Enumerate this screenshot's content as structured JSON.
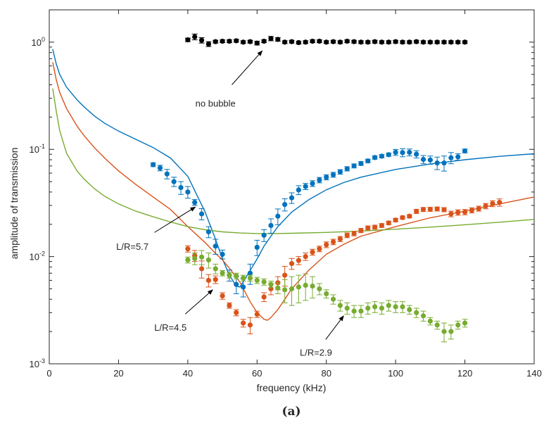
{
  "chart_data": {
    "type": "scatter",
    "xlabel": "frequency (kHz)",
    "ylabel": "amplitude of transmission",
    "xlim": [
      0,
      140
    ],
    "ylim": [
      0.001,
      2
    ],
    "yscale": "log",
    "xticks": [
      0,
      20,
      40,
      60,
      80,
      100,
      120,
      140
    ],
    "xtick_labels": [
      "0",
      "20",
      "40",
      "60",
      "80",
      "100",
      "120",
      "140"
    ],
    "yticks": [
      0.001,
      0.01,
      0.1,
      1
    ],
    "ytick_labels": [
      {
        "base": "10",
        "exp": "-3"
      },
      {
        "base": "10",
        "exp": "-2"
      },
      {
        "base": "10",
        "exp": "-1"
      },
      {
        "base": "10",
        "exp": "0"
      }
    ],
    "grid": false,
    "legend": "none",
    "caption": "(a)",
    "colors": {
      "blue": "#0072bd",
      "orange": "#d95319",
      "green": "#77ac30",
      "black": "#000000"
    },
    "series": [
      {
        "color": "#000000",
        "kind": "points",
        "x": [
          40,
          42,
          44,
          46,
          48,
          50,
          52,
          54,
          56,
          58,
          60,
          62,
          64,
          66,
          68,
          70,
          72,
          74,
          76,
          78,
          80,
          82,
          84,
          86,
          88,
          90,
          92,
          94,
          96,
          98,
          100,
          102,
          104,
          106,
          108,
          110,
          112,
          114,
          116,
          118,
          120
        ],
        "y": [
          1.05,
          1.12,
          1.04,
          0.96,
          1.01,
          1.02,
          1.02,
          1.03,
          1.0,
          1.01,
          0.98,
          1.02,
          1.08,
          1.06,
          1.0,
          1.01,
          0.99,
          1.0,
          1.02,
          1.02,
          1.0,
          1.01,
          1.0,
          1.02,
          1.01,
          1.0,
          1.0,
          1.01,
          1.0,
          1.0,
          1.01,
          1.0,
          1.0,
          1.01,
          1.0,
          1.0,
          1.0,
          1.0,
          1.0,
          1.0,
          1.0
        ],
        "err": [
          0.04,
          0.07,
          0.06,
          0.05,
          0.03,
          0.03,
          0.03,
          0.03,
          0.03,
          0.03,
          0.04,
          0.03,
          0.05,
          0.04,
          0.03,
          0.03,
          0.03,
          0.03,
          0.03,
          0.03,
          0.03,
          0.03,
          0.03,
          0.03,
          0.03,
          0.03,
          0.03,
          0.03,
          0.03,
          0.03,
          0.03,
          0.03,
          0.03,
          0.03,
          0.03,
          0.03,
          0.03,
          0.03,
          0.03,
          0.03,
          0.03
        ]
      },
      {
        "color": "#0072bd",
        "kind": "points",
        "x": [
          30,
          32,
          34,
          36,
          38,
          40,
          42,
          44,
          46,
          48,
          50,
          52,
          54,
          56,
          58,
          60,
          62,
          64,
          66,
          68,
          70,
          72,
          74,
          76,
          78,
          80,
          82,
          84,
          86,
          88,
          90,
          92,
          94,
          96,
          98,
          100,
          102,
          104,
          106,
          108,
          110,
          112,
          114,
          116,
          118,
          120
        ],
        "y": [
          0.072,
          0.067,
          0.059,
          0.05,
          0.044,
          0.04,
          0.032,
          0.025,
          0.017,
          0.0125,
          0.0105,
          0.0067,
          0.0055,
          0.0052,
          0.007,
          0.0122,
          0.0158,
          0.0195,
          0.0238,
          0.0306,
          0.0353,
          0.0418,
          0.0451,
          0.048,
          0.0517,
          0.0549,
          0.058,
          0.0617,
          0.0659,
          0.0701,
          0.0738,
          0.078,
          0.0839,
          0.0864,
          0.0892,
          0.0938,
          0.0933,
          0.0938,
          0.0901,
          0.0805,
          0.0796,
          0.0747,
          0.0747,
          0.0834,
          0.0851,
          0.0966
        ],
        "err": [
          0.003,
          0.004,
          0.006,
          0.005,
          0.006,
          0.005,
          0.002,
          0.003,
          0.002,
          0.002,
          0.001,
          0.0008,
          0.001,
          0.001,
          0.0015,
          0.002,
          0.002,
          0.003,
          0.004,
          0.004,
          0.004,
          0.004,
          0.003,
          0.003,
          0.003,
          0.003,
          0.003,
          0.003,
          0.003,
          0.003,
          0.003,
          0.003,
          0.003,
          0.003,
          0.003,
          0.006,
          0.008,
          0.007,
          0.007,
          0.007,
          0.007,
          0.01,
          0.012,
          0.01,
          0.006,
          0.004
        ]
      },
      {
        "color": "#d95319",
        "kind": "points",
        "x": [
          40,
          42,
          44,
          46,
          48,
          50,
          52,
          54,
          56,
          58,
          60,
          62,
          64,
          66,
          68,
          70,
          72,
          74,
          76,
          78,
          80,
          82,
          84,
          86,
          88,
          90,
          92,
          94,
          96,
          98,
          100,
          102,
          104,
          106,
          108,
          110,
          112,
          114,
          116,
          118,
          120,
          122,
          124,
          126,
          128,
          130
        ],
        "y": [
          0.0118,
          0.0102,
          0.0077,
          0.006,
          0.0061,
          0.0043,
          0.0035,
          0.003,
          0.0024,
          0.0023,
          0.0029,
          0.0042,
          0.005,
          0.0057,
          0.0067,
          0.0086,
          0.0092,
          0.01,
          0.011,
          0.0118,
          0.0129,
          0.0137,
          0.0146,
          0.0158,
          0.0164,
          0.0175,
          0.0185,
          0.0188,
          0.0195,
          0.0206,
          0.0219,
          0.0231,
          0.0238,
          0.0264,
          0.0275,
          0.0276,
          0.0278,
          0.0274,
          0.025,
          0.0258,
          0.026,
          0.027,
          0.028,
          0.0296,
          0.0312,
          0.032
        ],
        "err": [
          0.0008,
          0.0012,
          0.0014,
          0.0008,
          0.0005,
          0.0003,
          0.0002,
          0.0002,
          0.0002,
          0.0004,
          0.0002,
          0.0004,
          0.0006,
          0.0008,
          0.0014,
          0.001,
          0.0008,
          0.0008,
          0.0007,
          0.0007,
          0.0008,
          0.0008,
          0.0008,
          0.0008,
          0.0008,
          0.0008,
          0.0008,
          0.0008,
          0.0008,
          0.0008,
          0.0008,
          0.0008,
          0.0008,
          0.0012,
          0.0012,
          0.0012,
          0.0012,
          0.0012,
          0.0015,
          0.0015,
          0.0015,
          0.0015,
          0.0015,
          0.0017,
          0.002,
          0.0025
        ]
      },
      {
        "color": "#77ac30",
        "kind": "points",
        "x": [
          40,
          42,
          44,
          46,
          48,
          50,
          52,
          54,
          56,
          58,
          60,
          62,
          64,
          66,
          68,
          70,
          72,
          74,
          76,
          78,
          80,
          82,
          84,
          86,
          88,
          90,
          92,
          94,
          96,
          98,
          100,
          102,
          104,
          106,
          108,
          110,
          112,
          114,
          116,
          118,
          120
        ],
        "y": [
          0.0093,
          0.0096,
          0.0099,
          0.0093,
          0.0077,
          0.007,
          0.0067,
          0.0066,
          0.0063,
          0.0063,
          0.006,
          0.0058,
          0.0055,
          0.0051,
          0.0049,
          0.005,
          0.0052,
          0.0054,
          0.0053,
          0.005,
          0.0045,
          0.004,
          0.0035,
          0.0033,
          0.0031,
          0.0031,
          0.0033,
          0.0034,
          0.0033,
          0.0035,
          0.0034,
          0.0034,
          0.0032,
          0.003,
          0.0028,
          0.0025,
          0.0023,
          0.002,
          0.002,
          0.0023,
          0.0024
        ],
        "err": [
          0.0006,
          0.0012,
          0.0015,
          0.0015,
          0.0008,
          0.0004,
          0.0004,
          0.0004,
          0.0004,
          0.0004,
          0.0004,
          0.0004,
          0.0004,
          0.0006,
          0.0012,
          0.0015,
          0.0015,
          0.0015,
          0.0012,
          0.0006,
          0.0004,
          0.0004,
          0.0004,
          0.0004,
          0.0004,
          0.0004,
          0.0004,
          0.0004,
          0.0004,
          0.0004,
          0.0004,
          0.0004,
          0.0003,
          0.0003,
          0.0003,
          0.0002,
          0.0002,
          0.0004,
          0.0003,
          0.0002,
          0.0002
        ]
      },
      {
        "color": "#0072bd",
        "kind": "line",
        "x": [
          1,
          2,
          3,
          5,
          8,
          10,
          13,
          16,
          20,
          25,
          30,
          35,
          40,
          45,
          48,
          50,
          52,
          54,
          55,
          56,
          58,
          60,
          62,
          64,
          66,
          70,
          75,
          80,
          85,
          90,
          100,
          110,
          120,
          130,
          140
        ],
        "y": [
          0.86,
          0.63,
          0.5,
          0.38,
          0.29,
          0.25,
          0.205,
          0.175,
          0.148,
          0.124,
          0.104,
          0.083,
          0.056,
          0.026,
          0.0145,
          0.0095,
          0.0067,
          0.0053,
          0.0052,
          0.0058,
          0.0074,
          0.0095,
          0.0125,
          0.0155,
          0.019,
          0.026,
          0.034,
          0.042,
          0.049,
          0.055,
          0.065,
          0.073,
          0.08,
          0.086,
          0.091
        ]
      },
      {
        "color": "#d95319",
        "kind": "line",
        "x": [
          1,
          2,
          3,
          5,
          8,
          10,
          13,
          16,
          20,
          25,
          30,
          35,
          40,
          45,
          48,
          50,
          52,
          55,
          58,
          60,
          62,
          63,
          64,
          66,
          68,
          70,
          75,
          80,
          85,
          90,
          100,
          110,
          120,
          130,
          140
        ],
        "y": [
          0.65,
          0.45,
          0.34,
          0.24,
          0.165,
          0.135,
          0.104,
          0.083,
          0.063,
          0.047,
          0.036,
          0.0275,
          0.019,
          0.0135,
          0.0107,
          0.0093,
          0.0078,
          0.0058,
          0.0038,
          0.003,
          0.0026,
          0.00255,
          0.0027,
          0.0032,
          0.004,
          0.005,
          0.0075,
          0.0105,
          0.013,
          0.0155,
          0.019,
          0.023,
          0.0265,
          0.031,
          0.036
        ]
      },
      {
        "color": "#77ac30",
        "kind": "line",
        "x": [
          1,
          2,
          3,
          5,
          8,
          10,
          13,
          16,
          20,
          25,
          30,
          35,
          40,
          45,
          50,
          55,
          60,
          65,
          70,
          80,
          90,
          100,
          110,
          120,
          130,
          140
        ],
        "y": [
          0.37,
          0.23,
          0.15,
          0.092,
          0.063,
          0.053,
          0.043,
          0.0365,
          0.031,
          0.0265,
          0.0235,
          0.021,
          0.019,
          0.0178,
          0.017,
          0.0166,
          0.0164,
          0.0164,
          0.0165,
          0.0168,
          0.0173,
          0.018,
          0.0188,
          0.0198,
          0.0209,
          0.0222
        ]
      }
    ],
    "annotations": [
      {
        "text": "no bubble",
        "tx": 48,
        "ty": 0.27,
        "ax": 61.5,
        "ay": 0.83
      },
      {
        "text": "L/R=5.7",
        "tx": 24,
        "ty": 0.0125,
        "ax": 42.2,
        "ay": 0.029
      },
      {
        "text": "L/R=4.5",
        "tx": 35,
        "ty": 0.0022,
        "ax": 47.2,
        "ay": 0.0049
      },
      {
        "text": "L/R=2.9",
        "tx": 77,
        "ty": 0.00128,
        "ax": 85,
        "ay": 0.0028
      }
    ]
  }
}
